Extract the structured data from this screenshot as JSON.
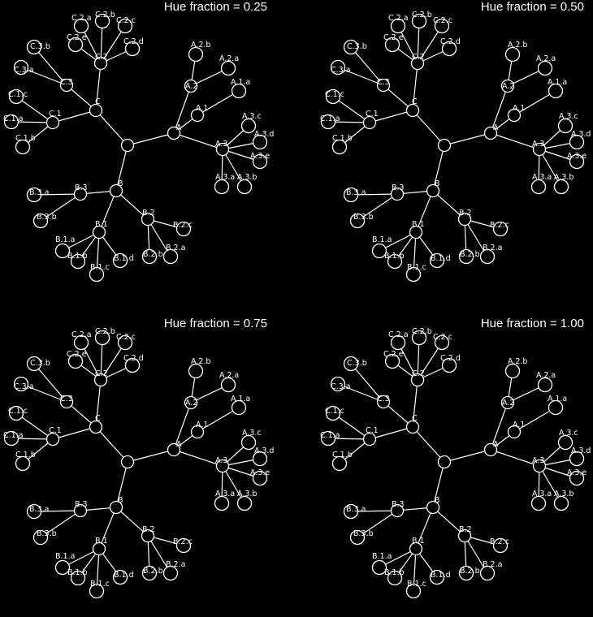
{
  "colors": {
    "background": "#000000",
    "foreground": "#ffffff"
  },
  "panels": [
    {
      "title": "Hue fraction = 0.25"
    },
    {
      "title": "Hue fraction = 0.50"
    },
    {
      "title": "Hue fraction = 0.75"
    },
    {
      "title": "Hue fraction = 1.00"
    }
  ],
  "tree": {
    "labels": {
      "root": "",
      "A": "A",
      "B": "B",
      "C": "C",
      "A.1": "A.1",
      "A.2": "A.2",
      "A.3": "A.3",
      "B.1": "B.1",
      "B.2": "B.2",
      "B.3": "B.3",
      "C.1": "C.1",
      "C.2": "C.2",
      "C.3": "C.3",
      "A.2.a": "A.2.a",
      "A.2.b": "A.2.b",
      "A.3.a": "A.3.a",
      "A.3.b": "A.3.b",
      "A.3.c": "A.3.c",
      "A.3.d": "A.3.d",
      "A.3.e": "A.3.e",
      "A.1.a": "A.1.a",
      "B.1.a": "B.1.a",
      "B.1.b": "B.1.b",
      "B.1.c": "B.1.c",
      "B.1.d": "B.1.d",
      "B.2.a": "B.2.a",
      "B.2.b": "B.2.b",
      "B.2.c": "B.2.c",
      "B.3.a": "B.3.a",
      "B.3.b": "B.3.b",
      "C.1.a": "C.1.a",
      "C.1.b": "C.1.b",
      "C.1.c": "C.1.c",
      "C.2.a": "C.2.a",
      "C.2.b": "C.2.b",
      "C.2.c": "C.2.c",
      "C.2.d": "C.2.d",
      "C.2.e": "C.2.e",
      "C.3.a": "C.3.a",
      "C.3.b": "C.3.b"
    }
  }
}
